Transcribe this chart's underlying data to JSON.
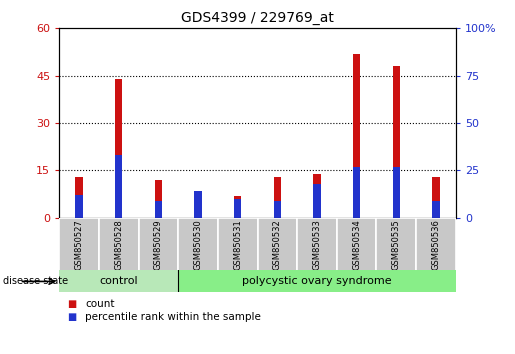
{
  "title": "GDS4399 / 229769_at",
  "samples": [
    "GSM850527",
    "GSM850528",
    "GSM850529",
    "GSM850530",
    "GSM850531",
    "GSM850532",
    "GSM850533",
    "GSM850534",
    "GSM850535",
    "GSM850536"
  ],
  "count_values": [
    13,
    44,
    12,
    2,
    7,
    13,
    14,
    52,
    48,
    13
  ],
  "percentile_values": [
    12,
    33,
    9,
    14,
    10,
    9,
    18,
    27,
    27,
    9
  ],
  "left_ylim": [
    0,
    60
  ],
  "right_ylim": [
    0,
    100
  ],
  "left_yticks": [
    0,
    15,
    30,
    45,
    60
  ],
  "right_yticks": [
    0,
    25,
    50,
    75,
    100
  ],
  "grid_values": [
    15,
    30,
    45
  ],
  "bar_color_count": "#cc1111",
  "bar_color_pct": "#2233cc",
  "bar_width": 0.18,
  "bg_plot": "#ffffff",
  "bg_sample_box": "#c8c8c8",
  "control_label": "control",
  "pcos_label": "polycystic ovary syndrome",
  "disease_state_label": "disease state",
  "legend_count": "count",
  "legend_pct": "percentile rank within the sample",
  "control_color": "#b8e8b8",
  "pcos_color": "#88ee88",
  "left_label_color": "#cc1111",
  "right_label_color": "#2233cc",
  "right_tick_labels": [
    "0",
    "25",
    "50",
    "75",
    "100%"
  ]
}
